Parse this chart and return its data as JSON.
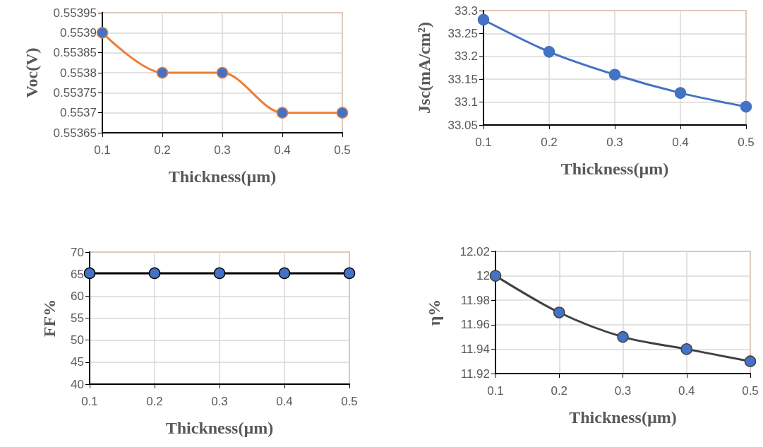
{
  "chart_data": [
    {
      "type": "line",
      "xlabel": "Thickness(µm)",
      "ylabel": "Voc(V)",
      "x": [
        0.1,
        0.2,
        0.3,
        0.4,
        0.5
      ],
      "series": [
        {
          "color": "#ed7d31",
          "values": [
            0.5539,
            0.5538,
            0.5538,
            0.5537,
            0.5537
          ]
        }
      ],
      "xlim": [
        0.1,
        0.5
      ],
      "xticks": [
        0.1,
        0.2,
        0.3,
        0.4,
        0.5
      ],
      "ylim": [
        0.55365,
        0.55395
      ],
      "yticks": [
        0.55365,
        0.5537,
        0.55375,
        0.5538,
        0.55385,
        0.5539,
        0.55395
      ],
      "grid": true,
      "marker": "circle",
      "line_style": "solid"
    },
    {
      "type": "line",
      "xlabel": "Thickness(µm)",
      "ylabel": "Jsc(mA/cm²)",
      "x": [
        0.1,
        0.2,
        0.3,
        0.4,
        0.5
      ],
      "series": [
        {
          "color": "#4472c4",
          "values": [
            33.28,
            33.21,
            33.16,
            33.12,
            33.09
          ]
        }
      ],
      "xlim": [
        0.1,
        0.5
      ],
      "xticks": [
        0.1,
        0.2,
        0.3,
        0.4,
        0.5
      ],
      "ylim": [
        33.05,
        33.3
      ],
      "yticks": [
        33.05,
        33.1,
        33.15,
        33.2,
        33.25,
        33.3
      ],
      "grid": true,
      "marker": "circle",
      "line_style": "solid"
    },
    {
      "type": "line",
      "xlabel": "Thickness(µm)",
      "ylabel": "FF%",
      "x": [
        0.1,
        0.2,
        0.3,
        0.4,
        0.5
      ],
      "series": [
        {
          "color": "#000000",
          "values": [
            65.2,
            65.2,
            65.2,
            65.2,
            65.2
          ]
        }
      ],
      "xlim": [
        0.1,
        0.5
      ],
      "xticks": [
        0.1,
        0.2,
        0.3,
        0.4,
        0.5
      ],
      "ylim": [
        40,
        70
      ],
      "yticks": [
        40,
        45,
        50,
        55,
        60,
        65,
        70
      ],
      "grid": true,
      "marker": "circle",
      "line_style": "solid"
    },
    {
      "type": "line",
      "xlabel": "Thickness(µm)",
      "ylabel": "η%",
      "x": [
        0.1,
        0.2,
        0.3,
        0.4,
        0.5
      ],
      "series": [
        {
          "color": "#404040",
          "values": [
            12.0,
            11.97,
            11.95,
            11.94,
            11.93
          ]
        }
      ],
      "xlim": [
        0.1,
        0.5
      ],
      "xticks": [
        0.1,
        0.2,
        0.3,
        0.4,
        0.5
      ],
      "ylim": [
        11.92,
        12.02
      ],
      "yticks": [
        11.92,
        11.94,
        11.96,
        11.98,
        12,
        12.02
      ],
      "grid": true,
      "marker": "circle",
      "line_style": "solid"
    }
  ]
}
